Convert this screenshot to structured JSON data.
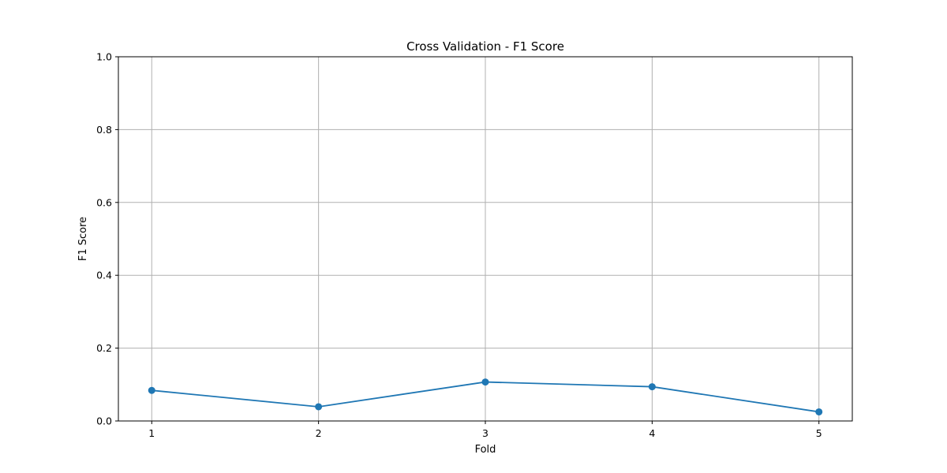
{
  "chart_data": {
    "type": "line",
    "title": "Cross Validation - F1 Score",
    "xlabel": "Fold",
    "ylabel": "F1 Score",
    "x": [
      1,
      2,
      3,
      4,
      5
    ],
    "series": [
      {
        "values": [
          0.084,
          0.039,
          0.107,
          0.094,
          0.025
        ],
        "color": "#1f77b4",
        "marker": "circle"
      }
    ],
    "xlim": [
      0.8,
      5.2
    ],
    "ylim": [
      0.0,
      1.0
    ],
    "xticks": [
      "1",
      "2",
      "3",
      "4",
      "5"
    ],
    "yticks": [
      "0.0",
      "0.2",
      "0.4",
      "0.6",
      "0.8",
      "1.0"
    ],
    "grid": true,
    "legend": false
  }
}
